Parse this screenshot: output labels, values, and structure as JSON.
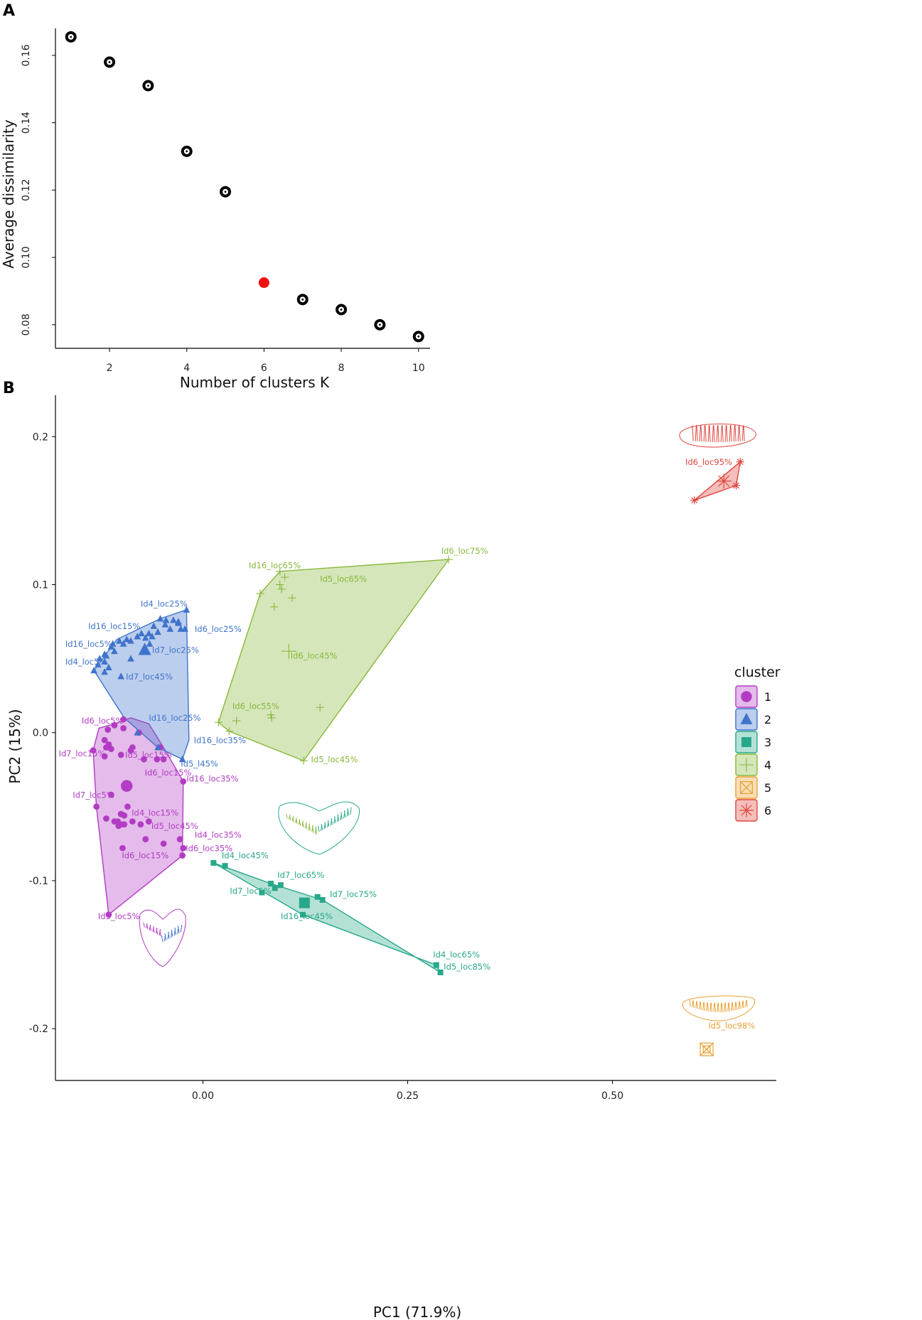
{
  "colors": {
    "cluster1": "#b23cc4",
    "cluster2": "#3f74cc",
    "cluster3": "#27a88a",
    "cluster4": "#88b83a",
    "cluster5": "#e8a032",
    "cluster6": "#e0453d",
    "highlight": "#ee1111",
    "axis": "#000000"
  },
  "chart_data": [
    {
      "panel": "A",
      "type": "scatter",
      "xlabel": "Number of clusters K",
      "ylabel": "Average dissimilarity",
      "xticks": [
        "2",
        "4",
        "6",
        "8",
        "10"
      ],
      "yticks": [
        "0.08",
        "0.10",
        "0.12",
        "0.14",
        "0.16"
      ],
      "xlim": [
        0.6,
        10.3
      ],
      "ylim": [
        0.073,
        0.168
      ],
      "k": [
        1,
        2,
        3,
        4,
        5,
        6,
        7,
        8,
        9,
        10
      ],
      "values": [
        0.1655,
        0.158,
        0.151,
        0.1315,
        0.1195,
        0.0925,
        0.0875,
        0.0845,
        0.08,
        0.0765
      ],
      "highlight_k": 6
    },
    {
      "panel": "B",
      "type": "scatter",
      "xlabel": "PC1 (71.9%)",
      "ylabel": "PC2 (15%)",
      "xticks": [
        "0.00",
        "0.25",
        "0.50"
      ],
      "yticks": [
        "0.2",
        "0.1",
        "0.0",
        "-0.1",
        "-0.2"
      ],
      "xlim": [
        -0.18,
        0.7
      ],
      "ylim": [
        -0.235,
        0.228
      ],
      "legend": {
        "title": "cluster",
        "entries": [
          "1",
          "2",
          "3",
          "4",
          "5",
          "6"
        ],
        "position": "right"
      },
      "series": [
        {
          "name": "1",
          "marker": "circle",
          "points": [
            [
              -0.134,
              -0.012
            ],
            [
              -0.118,
              -0.01
            ],
            [
              -0.12,
              -0.005
            ],
            [
              -0.115,
              -0.008
            ],
            [
              -0.097,
              0.003
            ],
            [
              -0.116,
              0.002
            ],
            [
              -0.112,
              -0.011
            ],
            [
              -0.12,
              -0.016
            ],
            [
              -0.108,
              0.005
            ],
            [
              -0.097,
              0.009
            ],
            [
              -0.088,
              -0.012
            ],
            [
              -0.086,
              -0.01
            ],
            [
              -0.1,
              -0.015
            ],
            [
              -0.072,
              -0.018
            ],
            [
              -0.094,
              -0.035
            ],
            [
              -0.112,
              -0.042
            ],
            [
              -0.096,
              -0.056
            ],
            [
              -0.1,
              -0.055
            ],
            [
              -0.104,
              -0.06
            ],
            [
              -0.1,
              -0.062
            ],
            [
              -0.096,
              -0.062
            ],
            [
              -0.092,
              -0.05
            ],
            [
              -0.076,
              -0.062
            ],
            [
              -0.07,
              -0.072
            ],
            [
              -0.066,
              -0.06
            ],
            [
              -0.103,
              -0.063
            ],
            [
              -0.086,
              -0.06
            ],
            [
              -0.108,
              -0.06
            ],
            [
              -0.1,
              -0.055
            ],
            [
              -0.098,
              -0.078
            ],
            [
              -0.118,
              -0.058
            ],
            [
              -0.028,
              -0.072
            ],
            [
              -0.024,
              -0.078
            ],
            [
              -0.048,
              -0.075
            ],
            [
              -0.13,
              -0.05
            ],
            [
              -0.115,
              -0.123
            ],
            [
              -0.025,
              -0.083
            ],
            [
              -0.056,
              -0.018
            ],
            [
              -0.048,
              -0.018
            ],
            [
              -0.078,
              0.0
            ],
            [
              -0.024,
              -0.033
            ],
            [
              -0.052,
              -0.01
            ]
          ],
          "centroid": [
            -0.093,
            -0.036
          ],
          "hull": [
            [
              -0.127,
              0.003
            ],
            [
              -0.108,
              0.006
            ],
            [
              -0.088,
              0.01
            ],
            [
              -0.066,
              0.006
            ],
            [
              -0.047,
              -0.011
            ],
            [
              -0.024,
              -0.033
            ],
            [
              -0.025,
              -0.083
            ],
            [
              -0.115,
              -0.123
            ],
            [
              -0.13,
              -0.05
            ],
            [
              -0.134,
              -0.012
            ]
          ],
          "labels": [
            {
              "text": "Id6_loc5%",
              "at": [
                -0.148,
                0.006
              ]
            },
            {
              "text": "Id7_loc15%",
              "at": [
                -0.176,
                -0.016
              ]
            },
            {
              "text": "Id5_loc15%",
              "at": [
                -0.095,
                -0.017
              ]
            },
            {
              "text": "Id6_loc15%",
              "at": [
                -0.071,
                -0.029
              ]
            },
            {
              "text": "Id7_loc5%",
              "at": [
                -0.159,
                -0.044
              ]
            },
            {
              "text": "Id4_loc15%",
              "at": [
                -0.087,
                -0.056
              ]
            },
            {
              "text": "Id5_loc45%",
              "at": [
                -0.063,
                -0.065
              ]
            },
            {
              "text": "Id4_loc35%",
              "at": [
                -0.01,
                -0.071
              ]
            },
            {
              "text": "Id6_loc15%",
              "at": [
                -0.099,
                -0.085
              ]
            },
            {
              "text": "Id6_loc35%",
              "at": [
                -0.021,
                -0.08
              ]
            },
            {
              "text": "Id16_loc35%",
              "at": [
                -0.02,
                -0.033
              ]
            },
            {
              "text": "Id5_loc5%",
              "at": [
                -0.128,
                -0.126
              ]
            }
          ]
        },
        {
          "name": "2",
          "marker": "triangle",
          "points": [
            [
              -0.133,
              0.042
            ],
            [
              -0.128,
              0.046
            ],
            [
              -0.126,
              0.05
            ],
            [
              -0.12,
              0.041
            ],
            [
              -0.118,
              0.052
            ],
            [
              -0.112,
              0.058
            ],
            [
              -0.11,
              0.06
            ],
            [
              -0.108,
              0.055
            ],
            [
              -0.12,
              0.053
            ],
            [
              -0.102,
              0.062
            ],
            [
              -0.097,
              0.06
            ],
            [
              -0.093,
              0.063
            ],
            [
              -0.088,
              0.062
            ],
            [
              -0.08,
              0.065
            ],
            [
              -0.075,
              0.067
            ],
            [
              -0.066,
              0.067
            ],
            [
              -0.06,
              0.072
            ],
            [
              -0.052,
              0.077
            ],
            [
              -0.046,
              0.073
            ],
            [
              -0.04,
              0.07
            ],
            [
              -0.036,
              0.076
            ],
            [
              -0.03,
              0.075
            ],
            [
              -0.027,
              0.07
            ],
            [
              -0.022,
              0.07
            ],
            [
              -0.02,
              0.083
            ],
            [
              -0.03,
              0.074
            ],
            [
              -0.045,
              0.076
            ],
            [
              -0.062,
              0.065
            ],
            [
              -0.07,
              0.064
            ],
            [
              -0.1,
              0.038
            ],
            [
              -0.065,
              0.06
            ],
            [
              -0.055,
              0.068
            ],
            [
              -0.088,
              0.05
            ],
            [
              -0.115,
              0.044
            ],
            [
              -0.12,
              0.048
            ],
            [
              -0.055,
              -0.01
            ],
            [
              -0.025,
              -0.018
            ],
            [
              -0.08,
              0.0
            ]
          ],
          "centroid": [
            -0.071,
            0.056
          ],
          "hull": [
            [
              -0.133,
              0.042
            ],
            [
              -0.105,
              0.063
            ],
            [
              -0.052,
              0.077
            ],
            [
              -0.02,
              0.083
            ],
            [
              -0.017,
              -0.005
            ],
            [
              -0.025,
              -0.018
            ],
            [
              -0.055,
              -0.01
            ],
            [
              -0.096,
              0.01
            ]
          ],
          "labels": [
            {
              "text": "Id4_loc25%",
              "at": [
                -0.076,
                0.085
              ]
            },
            {
              "text": "Id16_loc15%",
              "at": [
                -0.14,
                0.07
              ]
            },
            {
              "text": "Id6_loc25%",
              "at": [
                -0.01,
                0.068
              ]
            },
            {
              "text": "Id16_loc5%",
              "at": [
                -0.168,
                0.058
              ]
            },
            {
              "text": "Id7_loc25%",
              "at": [
                -0.062,
                0.054
              ]
            },
            {
              "text": "Id4_loc5%",
              "at": [
                -0.168,
                0.046
              ]
            },
            {
              "text": "Id7_loc45%",
              "at": [
                -0.094,
                0.036
              ]
            },
            {
              "text": "Id16_loc25%",
              "at": [
                -0.066,
                0.008
              ]
            },
            {
              "text": "Id16_loc35%",
              "at": [
                -0.011,
                -0.007
              ]
            },
            {
              "text": "Id5_l45%",
              "at": [
                -0.027,
                -0.023
              ]
            }
          ]
        },
        {
          "name": "3",
          "marker": "square",
          "points": [
            [
              0.013,
              -0.088
            ],
            [
              0.027,
              -0.09
            ],
            [
              0.072,
              -0.108
            ],
            [
              0.083,
              -0.102
            ],
            [
              0.088,
              -0.105
            ],
            [
              0.095,
              -0.103
            ],
            [
              0.122,
              -0.123
            ],
            [
              0.14,
              -0.111
            ],
            [
              0.146,
              -0.113
            ],
            [
              0.285,
              -0.157
            ],
            [
              0.29,
              -0.162
            ]
          ],
          "centroid": [
            0.124,
            -0.115
          ],
          "hull": [
            [
              0.013,
              -0.088
            ],
            [
              0.083,
              -0.102
            ],
            [
              0.146,
              -0.113
            ],
            [
              0.29,
              -0.162
            ],
            [
              0.285,
              -0.157
            ],
            [
              0.122,
              -0.123
            ]
          ],
          "labels": [
            {
              "text": "Id4_loc45%",
              "at": [
                0.023,
                -0.085
              ]
            },
            {
              "text": "Id7_loc65%",
              "at": [
                0.091,
                -0.098
              ]
            },
            {
              "text": "Id7_loc5%",
              "at": [
                0.033,
                -0.109
              ]
            },
            {
              "text": "Id7_loc75%",
              "at": [
                0.155,
                -0.111
              ]
            },
            {
              "text": "Id16_loc45%",
              "at": [
                0.095,
                -0.126
              ]
            },
            {
              "text": "Id4_loc65%",
              "at": [
                0.281,
                -0.152
              ]
            },
            {
              "text": "Id5_loc85%",
              "at": [
                0.294,
                -0.16
              ]
            }
          ]
        },
        {
          "name": "4",
          "marker": "plus",
          "points": [
            [
              0.019,
              0.007
            ],
            [
              0.032,
              0.001
            ],
            [
              0.041,
              0.008
            ],
            [
              0.083,
              0.012
            ],
            [
              0.084,
              0.01
            ],
            [
              0.07,
              0.094
            ],
            [
              0.094,
              0.109
            ],
            [
              0.094,
              0.1
            ],
            [
              0.096,
              0.097
            ],
            [
              0.1,
              0.105
            ],
            [
              0.087,
              0.085
            ],
            [
              0.109,
              0.091
            ],
            [
              0.123,
              -0.019
            ],
            [
              0.143,
              0.017
            ],
            [
              0.3,
              0.117
            ]
          ],
          "centroid": [
            0.105,
            0.055
          ],
          "hull": [
            [
              0.019,
              0.007
            ],
            [
              0.07,
              0.094
            ],
            [
              0.094,
              0.109
            ],
            [
              0.3,
              0.117
            ],
            [
              0.123,
              -0.019
            ],
            [
              0.032,
              0.001
            ]
          ],
          "labels": [
            {
              "text": "Id16_loc65%",
              "at": [
                0.056,
                0.111
              ]
            },
            {
              "text": "Id6_loc75%",
              "at": [
                0.291,
                0.121
              ]
            },
            {
              "text": "Id5_loc65%",
              "at": [
                0.143,
                0.102
              ]
            },
            {
              "text": "Id6_loc45%",
              "at": [
                0.107,
                0.05
              ]
            },
            {
              "text": "Id6_loc55%",
              "at": [
                0.036,
                0.016
              ]
            },
            {
              "text": "Id5_loc45%",
              "at": [
                0.132,
                -0.02
              ]
            }
          ]
        },
        {
          "name": "5",
          "marker": "boxx",
          "points": [
            [
              0.615,
              -0.214
            ]
          ],
          "centroid": [
            0.615,
            -0.214
          ],
          "hull": [],
          "labels": [
            {
              "text": "Id5_loc98%",
              "at": [
                0.617,
                -0.2
              ]
            }
          ]
        },
        {
          "name": "6",
          "marker": "star",
          "points": [
            [
              0.6,
              0.157
            ],
            [
              0.656,
              0.183
            ],
            [
              0.651,
              0.167
            ]
          ],
          "centroid": [
            0.636,
            0.17
          ],
          "hull": [
            [
              0.6,
              0.157
            ],
            [
              0.656,
              0.183
            ],
            [
              0.651,
              0.167
            ]
          ],
          "labels": [
            {
              "text": "Id6_loc95%",
              "at": [
                0.589,
                0.181
              ]
            }
          ]
        }
      ],
      "shape_outlines": [
        {
          "cluster": "6",
          "kind": "otolith-long",
          "center": [
            0.629,
            0.201
          ]
        },
        {
          "cluster": "5",
          "kind": "otolith-curved",
          "center": [
            0.63,
            -0.185
          ]
        },
        {
          "cluster": "34",
          "kind": "otolith-heart",
          "center": [
            0.142,
            -0.062
          ]
        },
        {
          "cluster": "12",
          "kind": "otolith-heart",
          "center": [
            -0.049,
            -0.136
          ]
        }
      ]
    }
  ]
}
